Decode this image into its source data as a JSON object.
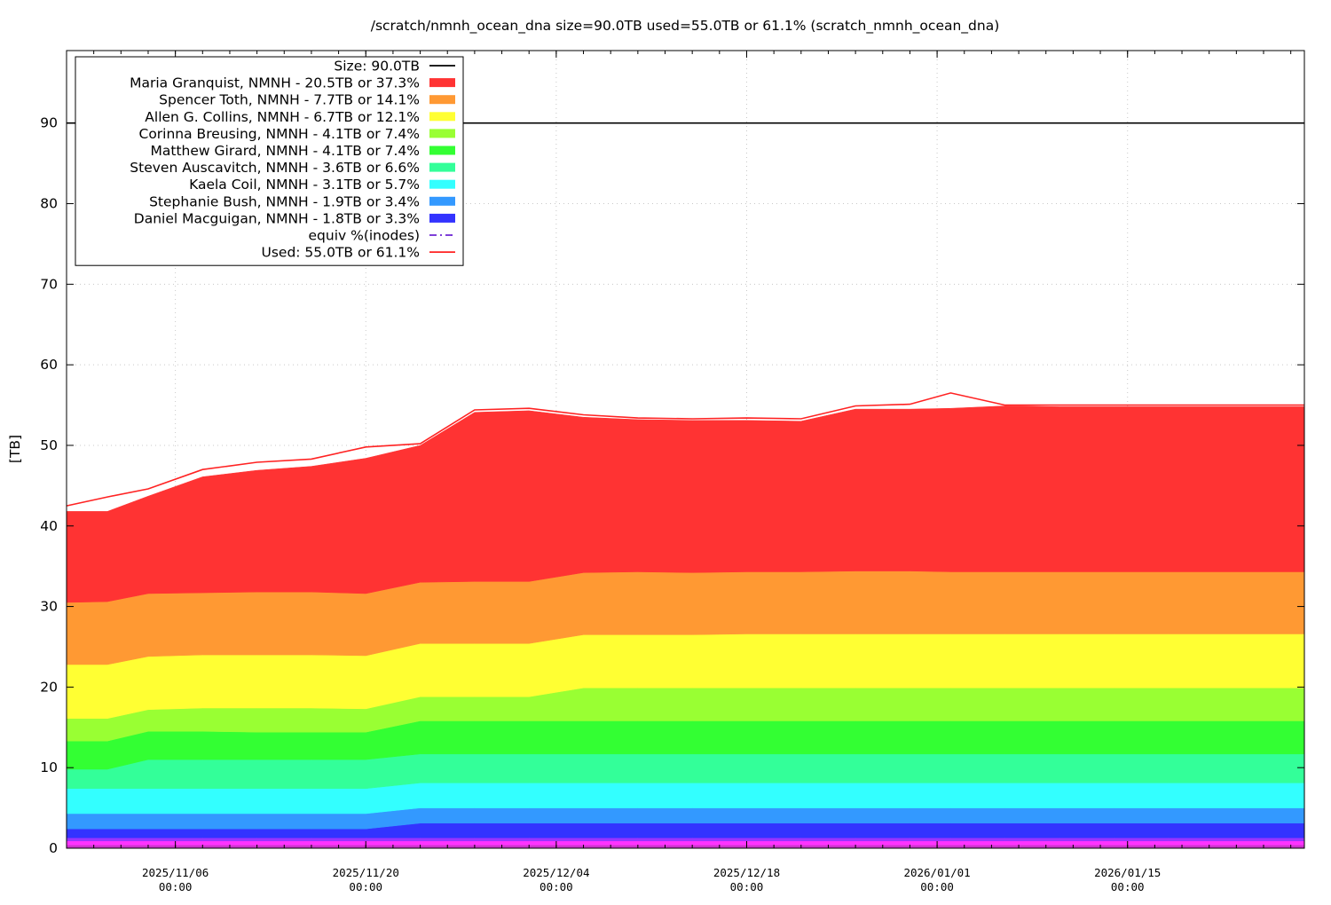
{
  "chart_data": {
    "type": "area",
    "title": "/scratch/nmnh_ocean_dna size=90.0TB used=55.0TB or 61.1% (scratch_nmnh_ocean_dna)",
    "ylabel": "[TB]",
    "xlabel": "",
    "ylim": [
      0,
      99
    ],
    "xlim": [
      "2025-10-29",
      "2026-01-28"
    ],
    "yticks": [
      "0",
      "10",
      "20",
      "30",
      "40",
      "50",
      "60",
      "70",
      "80",
      "90"
    ],
    "xticks": [
      {
        "date": "2025-11-06",
        "line1": "2025/11/06",
        "line2": "00:00"
      },
      {
        "date": "2025-11-20",
        "line1": "2025/11/20",
        "line2": "00:00"
      },
      {
        "date": "2025-12-04",
        "line1": "2025/12/04",
        "line2": "00:00"
      },
      {
        "date": "2025-12-18",
        "line1": "2025/12/18",
        "line2": "00:00"
      },
      {
        "date": "2026-01-01",
        "line1": "2026/01/01",
        "line2": "00:00"
      },
      {
        "date": "2026-01-15",
        "line1": "2026/01/15",
        "line2": "00:00"
      }
    ],
    "grid": true,
    "legend_position": "top-left",
    "size_line": {
      "label": "Size: 90.0TB",
      "value": 90.0,
      "color": "#000000"
    },
    "x": [
      "2025-10-29",
      "2025-11-01",
      "2025-11-04",
      "2025-11-08",
      "2025-11-12",
      "2025-11-16",
      "2025-11-20",
      "2025-11-24",
      "2025-11-28",
      "2025-12-02",
      "2025-12-06",
      "2025-12-10",
      "2025-12-14",
      "2025-12-18",
      "2025-12-22",
      "2025-12-26",
      "2025-12-30",
      "2026-01-02",
      "2026-01-06",
      "2026-01-10",
      "2026-01-14",
      "2026-01-18",
      "2026-01-22",
      "2026-01-28"
    ],
    "series": [
      {
        "name": "Maria Granquist, NMNH - 20.5TB or 37.3%",
        "color": "#ff3333",
        "values": [
          11.3,
          11.2,
          12.1,
          14.4,
          15.1,
          15.6,
          16.8,
          17.0,
          21.0,
          21.2,
          19.3,
          18.9,
          18.9,
          18.8,
          18.7,
          20.1,
          20.1,
          20.3,
          20.6,
          20.5,
          20.5,
          20.5,
          20.5,
          20.5
        ]
      },
      {
        "name": "Spencer Toth, NMNH - 7.7TB or 14.1%",
        "color": "#ff9933",
        "values": [
          7.7,
          7.8,
          7.8,
          7.7,
          7.8,
          7.8,
          7.7,
          7.6,
          7.7,
          7.7,
          7.7,
          7.8,
          7.7,
          7.7,
          7.7,
          7.8,
          7.8,
          7.7,
          7.7,
          7.7,
          7.7,
          7.7,
          7.7,
          7.7
        ]
      },
      {
        "name": "Allen G. Collins, NMNH - 6.7TB or 12.1%",
        "color": "#ffff33",
        "values": [
          6.7,
          6.7,
          6.6,
          6.6,
          6.6,
          6.6,
          6.6,
          6.6,
          6.6,
          6.6,
          6.6,
          6.6,
          6.6,
          6.7,
          6.7,
          6.7,
          6.7,
          6.7,
          6.7,
          6.7,
          6.7,
          6.7,
          6.7,
          6.7
        ]
      },
      {
        "name": "Corinna Breusing, NMNH - 4.1TB or 7.4%",
        "color": "#99ff33",
        "values": [
          2.8,
          2.8,
          2.7,
          2.9,
          3.0,
          3.0,
          2.9,
          3.0,
          3.0,
          3.0,
          4.1,
          4.1,
          4.1,
          4.1,
          4.1,
          4.1,
          4.1,
          4.1,
          4.1,
          4.1,
          4.1,
          4.1,
          4.1,
          4.1
        ]
      },
      {
        "name": "Matthew Girard, NMNH - 4.1TB or 7.4%",
        "color": "#33ff33",
        "values": [
          3.5,
          3.5,
          3.5,
          3.5,
          3.4,
          3.4,
          3.4,
          4.1,
          4.1,
          4.1,
          4.1,
          4.1,
          4.1,
          4.1,
          4.1,
          4.1,
          4.1,
          4.1,
          4.1,
          4.1,
          4.1,
          4.1,
          4.1,
          4.1
        ]
      },
      {
        "name": "Steven Auscavitch, NMNH - 3.6TB or 6.6%",
        "color": "#33ff99",
        "values": [
          2.4,
          2.4,
          3.6,
          3.6,
          3.6,
          3.6,
          3.6,
          3.6,
          3.6,
          3.6,
          3.6,
          3.6,
          3.6,
          3.6,
          3.6,
          3.6,
          3.6,
          3.6,
          3.6,
          3.6,
          3.6,
          3.6,
          3.6,
          3.6
        ]
      },
      {
        "name": "Kaela Coil, NMNH - 3.1TB or 5.7%",
        "color": "#33ffff",
        "values": [
          3.1,
          3.1,
          3.1,
          3.1,
          3.1,
          3.1,
          3.1,
          3.1,
          3.1,
          3.1,
          3.1,
          3.1,
          3.1,
          3.1,
          3.1,
          3.1,
          3.1,
          3.1,
          3.1,
          3.1,
          3.1,
          3.1,
          3.1,
          3.1
        ]
      },
      {
        "name": "Stephanie Bush, NMNH - 1.9TB or 3.4%",
        "color": "#3399ff",
        "values": [
          1.9,
          1.9,
          1.9,
          1.9,
          1.9,
          1.9,
          1.9,
          1.9,
          1.9,
          1.9,
          1.9,
          1.9,
          1.9,
          1.9,
          1.9,
          1.9,
          1.9,
          1.9,
          1.9,
          1.9,
          1.9,
          1.9,
          1.9,
          1.9
        ]
      },
      {
        "name": "Daniel Macguigan, NMNH - 1.8TB or 3.3%",
        "color": "#3333ff",
        "values": [
          1.1,
          1.1,
          1.1,
          1.1,
          1.1,
          1.1,
          1.1,
          1.8,
          1.8,
          1.8,
          1.8,
          1.8,
          1.8,
          1.8,
          1.8,
          1.8,
          1.8,
          1.8,
          1.8,
          1.8,
          1.8,
          1.8,
          1.8,
          1.8
        ]
      },
      {
        "color": "#9933ff",
        "values": [
          0.4,
          0.4,
          0.4,
          0.4,
          0.4,
          0.4,
          0.4,
          0.4,
          0.4,
          0.4,
          0.4,
          0.4,
          0.4,
          0.4,
          0.4,
          0.4,
          0.4,
          0.4,
          0.4,
          0.4,
          0.4,
          0.4,
          0.4,
          0.4
        ]
      },
      {
        "color": "#ff33ff",
        "values": [
          0.5,
          0.5,
          0.5,
          0.5,
          0.5,
          0.5,
          0.5,
          0.5,
          0.5,
          0.5,
          0.5,
          0.5,
          0.5,
          0.5,
          0.5,
          0.5,
          0.5,
          0.5,
          0.5,
          0.5,
          0.5,
          0.5,
          0.5,
          0.5
        ]
      },
      {
        "color": "#cc33cc",
        "values": [
          0.4,
          0.4,
          0.4,
          0.4,
          0.4,
          0.4,
          0.4,
          0.4,
          0.4,
          0.4,
          0.4,
          0.4,
          0.4,
          0.4,
          0.4,
          0.4,
          0.4,
          0.4,
          0.4,
          0.4,
          0.4,
          0.4,
          0.4,
          0.4
        ]
      }
    ],
    "used_line": {
      "label": "Used: 55.0TB or 61.1%",
      "color": "#ff2222",
      "x": [
        "2025-10-29",
        "2025-11-01",
        "2025-11-04",
        "2025-11-08",
        "2025-11-12",
        "2025-11-16",
        "2025-11-20",
        "2025-11-24",
        "2025-11-28",
        "2025-12-02",
        "2025-12-06",
        "2025-12-10",
        "2025-12-14",
        "2025-12-18",
        "2025-12-22",
        "2025-12-26",
        "2025-12-30",
        "2026-01-02",
        "2026-01-06",
        "2026-01-10",
        "2026-01-14",
        "2026-01-18",
        "2026-01-22",
        "2026-01-28"
      ],
      "values": [
        42.5,
        43.6,
        44.6,
        47.0,
        47.9,
        48.3,
        49.8,
        50.2,
        54.4,
        54.6,
        53.8,
        53.4,
        53.3,
        53.4,
        53.3,
        54.9,
        55.1,
        56.5,
        55.0,
        55.0,
        55.0,
        55.0,
        55.0,
        55.0
      ]
    },
    "inodes_line": {
      "label": "equiv %(inodes)",
      "color": "#5500cc",
      "dash": "dash-dot"
    }
  }
}
